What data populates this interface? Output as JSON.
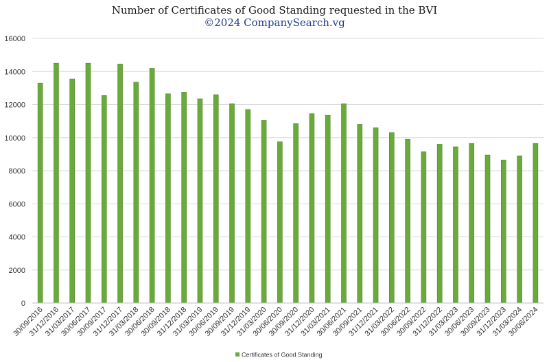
{
  "chart_data": {
    "type": "bar",
    "title": "Number of Certificates of Good Standing requested in the BVI",
    "subtitle": "©2024 CompanySearch.vg",
    "xlabel": "",
    "ylabel": "",
    "ylim": [
      0,
      16000
    ],
    "yticks": [
      0,
      2000,
      4000,
      6000,
      8000,
      10000,
      12000,
      14000,
      16000
    ],
    "grid": true,
    "legend_position": "bottom-center",
    "categories": [
      "30/09/2016",
      "31/12/2016",
      "31/03/2017",
      "30/06/2017",
      "30/09/2017",
      "31/12/2017",
      "31/03/2018",
      "30/06/2018",
      "30/09/2018",
      "31/12/2018",
      "31/03/2019",
      "30/06/2019",
      "30/09/2019",
      "31/12/2019",
      "31/03/2020",
      "30/06/2020",
      "30/09/2020",
      "31/12/2020",
      "31/03/2021",
      "30/06/2021",
      "30/09/2021",
      "31/12/2021",
      "31/03/2022",
      "30/06/2022",
      "30/09/2022",
      "31/12/2022",
      "31/03/2023",
      "30/06/2023",
      "30/09/2023",
      "31/12/2023",
      "31/03/2024",
      "30/06/2024"
    ],
    "series": [
      {
        "name": "Certificates of Good Standing",
        "color": "#6aaa3a",
        "values": [
          13300,
          14500,
          13550,
          14500,
          12550,
          14450,
          13350,
          14200,
          12650,
          12750,
          12350,
          12600,
          12050,
          11700,
          11050,
          9750,
          10850,
          11450,
          11350,
          12050,
          10800,
          10600,
          10300,
          9900,
          9150,
          9600,
          9450,
          9650,
          8950,
          8650,
          8900,
          9650
        ]
      }
    ]
  }
}
